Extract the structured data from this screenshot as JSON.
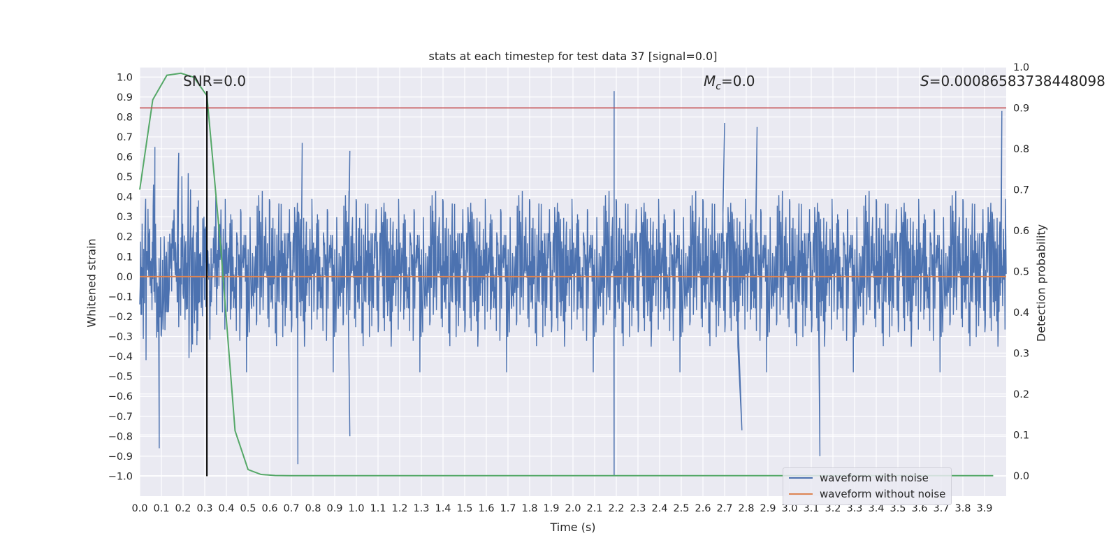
{
  "chart_data": {
    "type": "line",
    "title": "stats at each timestep for test data 37 [signal=0.0]",
    "xlabel": "Time (s)",
    "ylabel": "Whitened strain",
    "ylabel_right": "Detection probability",
    "xlim": [
      0.0,
      4.0
    ],
    "ylim": [
      -1.1,
      1.05
    ],
    "ylim_right": [
      -0.05,
      1.0
    ],
    "x_ticks": [
      "0.0",
      "0.1",
      "0.2",
      "0.3",
      "0.4",
      "0.5",
      "0.6",
      "0.7",
      "0.8",
      "0.9",
      "1.0",
      "1.1",
      "1.2",
      "1.3",
      "1.4",
      "1.5",
      "1.6",
      "1.7",
      "1.8",
      "1.9",
      "2.0",
      "2.1",
      "2.2",
      "2.3",
      "2.4",
      "2.5",
      "2.6",
      "2.7",
      "2.8",
      "2.9",
      "3.0",
      "3.1",
      "3.2",
      "3.3",
      "3.4",
      "3.5",
      "3.6",
      "3.7",
      "3.8",
      "3.9"
    ],
    "y_ticks": [
      "1.0",
      "0.9",
      "0.8",
      "0.7",
      "0.6",
      "0.5",
      "0.4",
      "0.3",
      "0.2",
      "0.1",
      "0.0",
      "−0.1",
      "−0.2",
      "−0.3",
      "−0.4",
      "−0.5",
      "−0.6",
      "−0.7",
      "−0.8",
      "−0.9",
      "−1.0"
    ],
    "y_ticks_right": [
      "1.0",
      "0.9",
      "0.8",
      "0.7",
      "0.6",
      "0.5",
      "0.4",
      "0.3",
      "0.2",
      "0.1",
      "0.0"
    ],
    "grid": true,
    "legend_position": "bottom-right",
    "series": [
      {
        "name": "waveform with noise",
        "color": "#4c72b0",
        "style": "dense noise, mostly within ±0.5",
        "peaks": [
          {
            "x": 2.19,
            "y": 0.93
          },
          {
            "x": 2.19,
            "y": -1.0
          },
          {
            "x": 3.98,
            "y": 0.83
          },
          {
            "x": 0.73,
            "y": -0.94
          },
          {
            "x": 3.14,
            "y": -0.9
          },
          {
            "x": 0.09,
            "y": -0.86
          },
          {
            "x": 2.7,
            "y": 0.77
          },
          {
            "x": 2.85,
            "y": 0.75
          },
          {
            "x": 0.75,
            "y": 0.67
          },
          {
            "x": 0.07,
            "y": 0.65
          },
          {
            "x": 0.97,
            "y": 0.63
          },
          {
            "x": 0.18,
            "y": 0.62
          },
          {
            "x": 2.78,
            "y": -0.77
          },
          {
            "x": 0.97,
            "y": -0.8
          }
        ]
      },
      {
        "name": "waveform without noise",
        "color": "#dd8452",
        "values_constant": 0.0
      }
    ],
    "probability_curve": {
      "color": "#55a868",
      "axis": "right",
      "x": [
        0.0,
        0.06,
        0.125,
        0.19,
        0.25,
        0.31,
        0.375,
        0.44,
        0.5,
        0.56,
        0.625,
        0.69,
        0.75,
        1.0,
        2.0,
        3.0,
        3.94
      ],
      "y": [
        0.7,
        0.92,
        0.98,
        0.985,
        0.975,
        0.93,
        0.55,
        0.11,
        0.015,
        0.003,
        0.0005,
        0.0001,
        0.0,
        0.0,
        0.0,
        0.0,
        0.0
      ]
    },
    "threshold_line": {
      "color": "#c44e52",
      "value": 0.9,
      "axis": "right"
    },
    "marker_line": {
      "color": "#000000",
      "x": 0.31,
      "y_range": [
        -1.0,
        0.93
      ]
    }
  },
  "annotations": {
    "snr": "SNR=0.0",
    "mc_symbol": "M",
    "mc_sub": "c",
    "mc_value": "=0.0",
    "s_symbol": "S",
    "s_value": "=0.00086583738448098"
  },
  "legend": {
    "with_noise": "waveform with noise",
    "without_noise": "waveform without noise"
  }
}
